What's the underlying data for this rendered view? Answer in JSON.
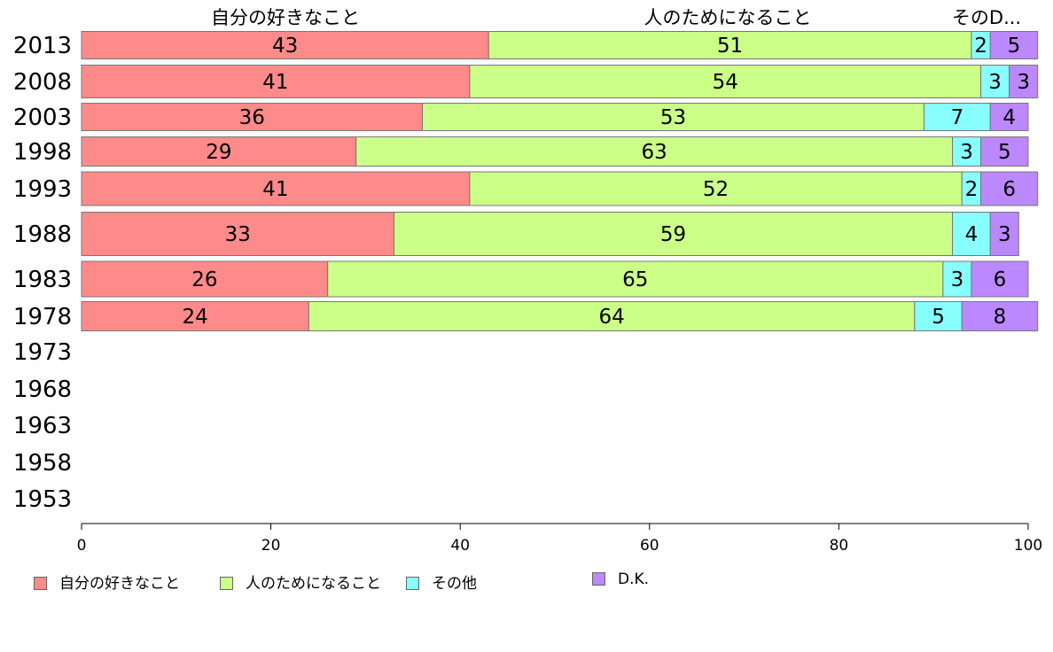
{
  "column_headers": [
    "自分の好きなこと",
    "人のためになること",
    "そのD..."
  ],
  "colors": {
    "自分の好きなこと": "#ff8a8a",
    "人のためになること": "#ccff88",
    "その他": "#88ffff",
    "D.K.": "#bb88ff"
  },
  "chart_data": {
    "type": "bar",
    "orientation": "horizontal",
    "stacked": true,
    "categories": [
      "2013",
      "2008",
      "2003",
      "1998",
      "1993",
      "1988",
      "1983",
      "1978",
      "1973",
      "1968",
      "1963",
      "1958",
      "1953"
    ],
    "series": [
      {
        "name": "自分の好きなこと",
        "values": [
          43,
          41,
          36,
          29,
          41,
          33,
          26,
          24,
          null,
          null,
          null,
          null,
          null
        ]
      },
      {
        "name": "人のためになること",
        "values": [
          51,
          54,
          53,
          63,
          52,
          59,
          65,
          64,
          null,
          null,
          null,
          null,
          null
        ]
      },
      {
        "name": "その他",
        "values": [
          2,
          3,
          7,
          3,
          2,
          4,
          3,
          5,
          null,
          null,
          null,
          null,
          null
        ]
      },
      {
        "name": "D.K.",
        "values": [
          5,
          3,
          4,
          5,
          6,
          3,
          6,
          8,
          null,
          null,
          null,
          null,
          null
        ]
      }
    ],
    "xlim": [
      0,
      100
    ],
    "xticks": [
      "0",
      "20",
      "40",
      "60",
      "80",
      "100"
    ],
    "legend_position": "bottom"
  }
}
